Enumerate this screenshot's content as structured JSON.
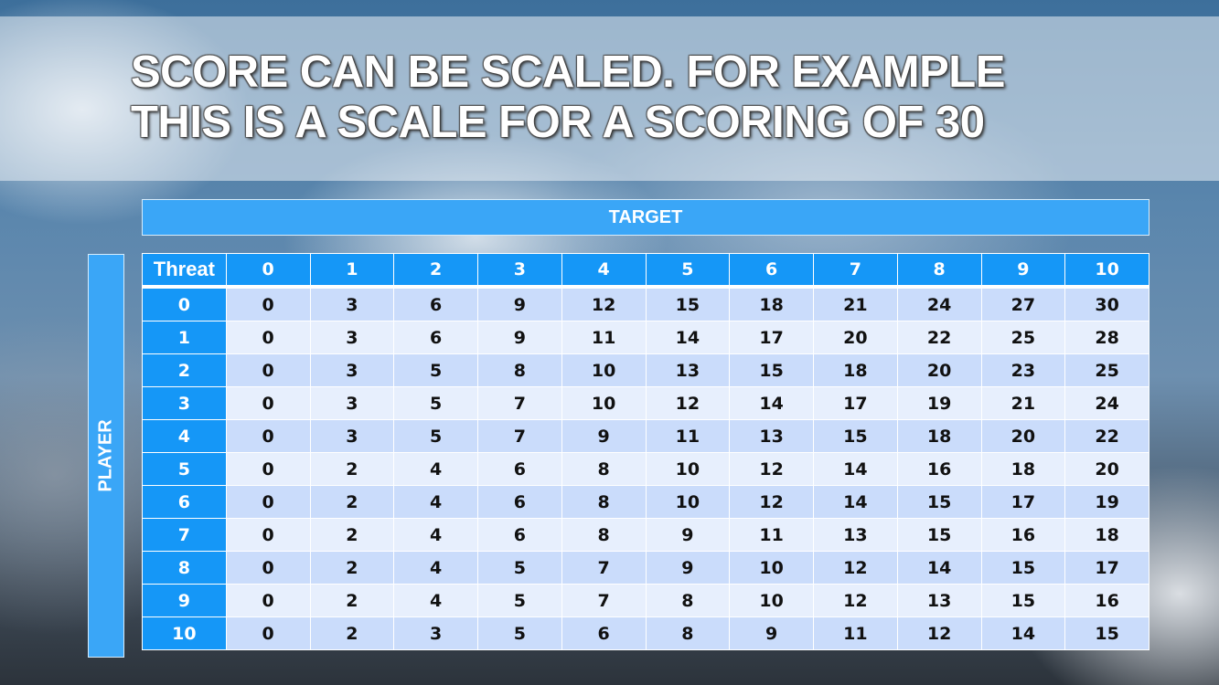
{
  "title_lines": [
    "SCORE CAN BE SCALED. FOR EXAMPLE",
    "THIS IS A SCALE FOR A SCORING OF 30"
  ],
  "column_group_label": "TARGET",
  "row_group_label": "PLAYER",
  "table": {
    "corner_label": "Threat",
    "columns": [
      "0",
      "1",
      "2",
      "3",
      "4",
      "5",
      "6",
      "7",
      "8",
      "9",
      "10"
    ],
    "rows": [
      {
        "label": "0",
        "values": [
          0,
          3,
          6,
          9,
          12,
          15,
          18,
          21,
          24,
          27,
          30
        ]
      },
      {
        "label": "1",
        "values": [
          0,
          3,
          6,
          9,
          11,
          14,
          17,
          20,
          22,
          25,
          28
        ]
      },
      {
        "label": "2",
        "values": [
          0,
          3,
          5,
          8,
          10,
          13,
          15,
          18,
          20,
          23,
          25
        ]
      },
      {
        "label": "3",
        "values": [
          0,
          3,
          5,
          7,
          10,
          12,
          14,
          17,
          19,
          21,
          24
        ]
      },
      {
        "label": "4",
        "values": [
          0,
          3,
          5,
          7,
          9,
          11,
          13,
          15,
          18,
          20,
          22
        ]
      },
      {
        "label": "5",
        "values": [
          0,
          2,
          4,
          6,
          8,
          10,
          12,
          14,
          16,
          18,
          20
        ]
      },
      {
        "label": "6",
        "values": [
          0,
          2,
          4,
          6,
          8,
          10,
          12,
          14,
          15,
          17,
          19
        ]
      },
      {
        "label": "7",
        "values": [
          0,
          2,
          4,
          6,
          8,
          9,
          11,
          13,
          15,
          16,
          18
        ]
      },
      {
        "label": "8",
        "values": [
          0,
          2,
          4,
          5,
          7,
          9,
          10,
          12,
          14,
          15,
          17
        ]
      },
      {
        "label": "9",
        "values": [
          0,
          2,
          4,
          5,
          7,
          8,
          10,
          12,
          13,
          15,
          16
        ]
      },
      {
        "label": "10",
        "values": [
          0,
          2,
          3,
          5,
          6,
          8,
          9,
          11,
          12,
          14,
          15
        ]
      }
    ]
  },
  "colors": {
    "header_blue": "#1597f7",
    "bar_blue": "#3aa6f7",
    "row_dark": "#cadcfb",
    "row_light": "#e7effd"
  }
}
